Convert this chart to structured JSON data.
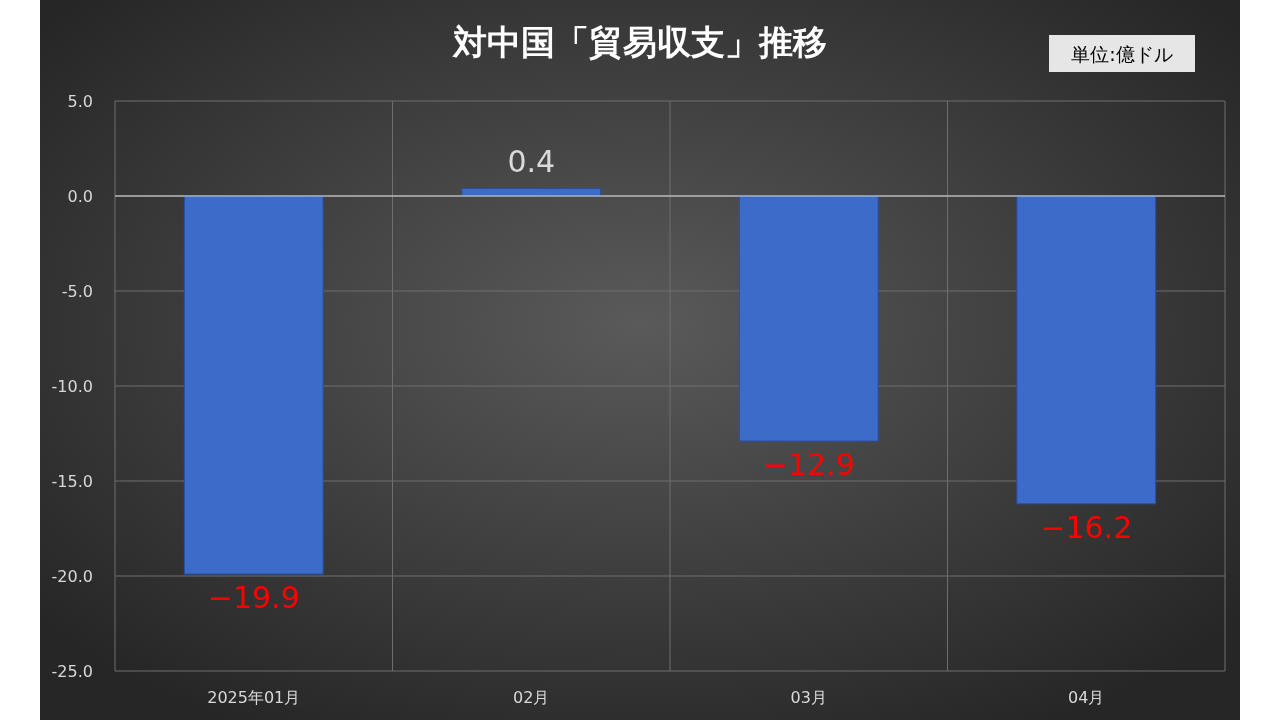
{
  "chart_data": {
    "type": "bar",
    "title": "対中国「貿易収支」推移",
    "annotations": [
      "単位:億ドル"
    ],
    "categories": [
      "2025年01月",
      "02月",
      "03月",
      "04月"
    ],
    "values": [
      -19.9,
      0.4,
      -12.9,
      -16.2
    ],
    "value_labels": [
      "−19.9",
      "0.4",
      "−12.9",
      "−16.2"
    ],
    "color": "#3d6bc9",
    "ylim": [
      -25,
      5
    ],
    "yticks": [
      {
        "value": 5,
        "label": "5.0"
      },
      {
        "value": 0,
        "label": "0.0"
      },
      {
        "value": -5,
        "label": "-5.0"
      },
      {
        "value": -10,
        "label": "-10.0"
      },
      {
        "value": -15,
        "label": "-15.0"
      },
      {
        "value": -20,
        "label": "-20.0"
      },
      {
        "value": -25,
        "label": "-25.0"
      }
    ],
    "grid": true
  }
}
